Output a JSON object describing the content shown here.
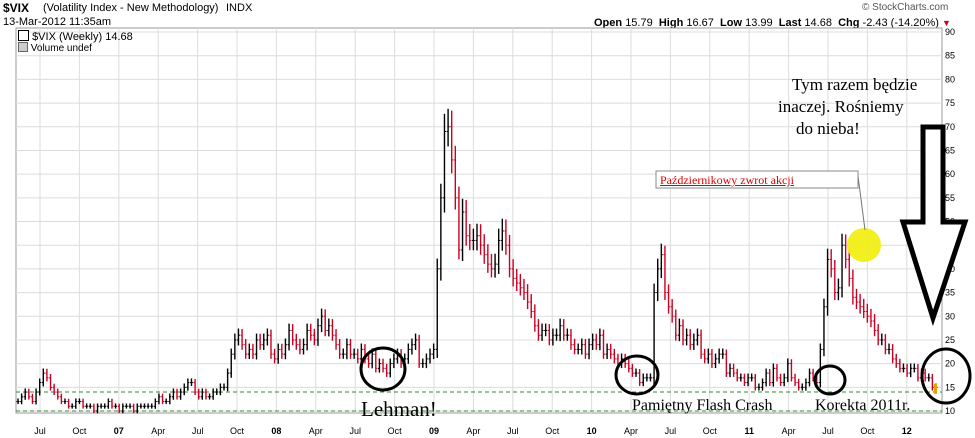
{
  "header": {
    "symbol": "$VIX",
    "name": "(Volatility Index - New Methodology)",
    "exchange": "INDX",
    "date": "13-Mar-2012 11:35am",
    "watermark": "© StockCharts.com",
    "open_label": "Open",
    "open_value": "15.79",
    "high_label": "High",
    "high_value": "16.67",
    "low_label": "Low",
    "low_value": "13.99",
    "last_label": "Last",
    "last_value": "14.68",
    "chg_label": "Chg",
    "chg_value": "-2.43 (-14.20%)",
    "series_legend": "$VIX (Weekly) 14.68",
    "volume_legend": "Volume undef"
  },
  "annotations": {
    "lehman": "Lehman!",
    "flash_crash": "Pamiętny Flash Crash",
    "korekta": "Korekta 2011r.",
    "zwrot": "Październikowy zwrot akcji",
    "quote_line1": "Tym razem będzie",
    "quote_line2": "inaczej. Rośniemy",
    "quote_line3": "do nieba!"
  },
  "colors": {
    "up": "#000000",
    "down": "#cc0022",
    "grid": "#dcdcdc",
    "support": "#2e8b2e",
    "highlight": "#f2ee0a",
    "callout_text": "#dd0000"
  },
  "chart_data": {
    "type": "ohlc",
    "title": "$VIX (Volatility Index - New Methodology)",
    "xlabel": "",
    "ylabel": "",
    "ylim": [
      9,
      90
    ],
    "yticks": [
      10,
      15,
      20,
      25,
      30,
      35,
      40,
      45,
      50,
      55,
      60,
      65,
      70,
      75,
      80,
      85,
      90
    ],
    "x_ticks": [
      {
        "label": "Jul",
        "date": "2006-07"
      },
      {
        "label": "Oct",
        "date": "2006-10"
      },
      {
        "label": "07",
        "date": "2007-01"
      },
      {
        "label": "Apr",
        "date": "2007-04"
      },
      {
        "label": "Jul",
        "date": "2007-07"
      },
      {
        "label": "Oct",
        "date": "2007-10"
      },
      {
        "label": "08",
        "date": "2008-01"
      },
      {
        "label": "Apr",
        "date": "2008-04"
      },
      {
        "label": "Jul",
        "date": "2008-07"
      },
      {
        "label": "Oct",
        "date": "2008-10"
      },
      {
        "label": "09",
        "date": "2009-01"
      },
      {
        "label": "Apr",
        "date": "2009-04"
      },
      {
        "label": "Jul",
        "date": "2009-07"
      },
      {
        "label": "Oct",
        "date": "2009-10"
      },
      {
        "label": "10",
        "date": "2010-01"
      },
      {
        "label": "Apr",
        "date": "2010-04"
      },
      {
        "label": "Jul",
        "date": "2010-07"
      },
      {
        "label": "Oct",
        "date": "2010-10"
      },
      {
        "label": "11",
        "date": "2011-01"
      },
      {
        "label": "Apr",
        "date": "2011-04"
      },
      {
        "label": "Jul",
        "date": "2011-07"
      },
      {
        "label": "Oct",
        "date": "2011-10"
      },
      {
        "label": "12",
        "date": "2012-01"
      }
    ],
    "support_levels": [
      14,
      10
    ],
    "last_value": 14.68,
    "series": [
      {
        "name": "$VIX (Weekly)",
        "date_range": [
          "2006-04",
          "2012-03"
        ],
        "values": [
          12,
          13,
          14,
          13,
          12,
          14,
          16,
          18,
          17,
          15,
          14,
          13,
          12,
          12,
          11,
          11,
          12,
          12,
          11,
          11,
          11,
          10,
          11,
          11,
          11,
          12,
          11,
          11,
          10,
          11,
          11,
          11,
          10,
          11,
          11,
          11,
          11,
          11,
          12,
          13,
          12,
          12,
          13,
          14,
          13,
          14,
          15,
          16,
          16,
          14,
          13,
          14,
          13,
          13,
          14,
          14,
          15,
          15,
          18,
          22,
          25,
          26,
          24,
          22,
          23,
          22,
          25,
          24,
          25,
          26,
          22,
          21,
          23,
          22,
          24,
          27,
          25,
          24,
          23,
          24,
          27,
          26,
          25,
          28,
          30,
          27,
          28,
          26,
          24,
          22,
          22,
          24,
          22,
          22,
          21,
          23,
          21,
          20,
          22,
          19,
          20,
          19,
          18,
          20,
          21,
          22,
          20,
          21,
          23,
          24,
          25,
          20,
          20,
          21,
          22,
          23,
          40,
          55,
          69,
          70,
          63,
          55,
          44,
          52,
          47,
          46,
          46,
          47,
          45,
          43,
          41,
          40,
          41,
          46,
          48,
          45,
          40,
          38,
          37,
          36,
          35,
          33,
          31,
          28,
          26,
          27,
          27,
          25,
          26,
          26,
          28,
          26,
          26,
          24,
          23,
          23,
          24,
          22,
          24,
          25,
          24,
          26,
          22,
          23,
          22,
          21,
          20,
          21,
          20,
          19,
          18,
          18,
          16,
          17,
          17,
          17,
          35,
          40,
          43,
          35,
          32,
          30,
          26,
          28,
          25,
          26,
          24,
          25,
          26,
          22,
          21,
          22,
          20,
          21,
          22,
          22,
          18,
          19,
          18,
          17,
          17,
          16,
          17,
          17,
          15,
          15,
          16,
          18,
          16,
          19,
          17,
          16,
          17,
          20,
          17,
          16,
          15,
          15,
          16,
          18,
          17,
          16,
          23,
          32,
          42,
          40,
          35,
          36,
          45,
          42,
          38,
          34,
          33,
          32,
          31,
          30,
          29,
          27,
          25,
          25,
          23,
          23,
          21,
          20,
          19,
          19,
          18,
          19,
          19,
          17,
          18,
          17,
          17,
          15,
          15
        ]
      }
    ]
  }
}
